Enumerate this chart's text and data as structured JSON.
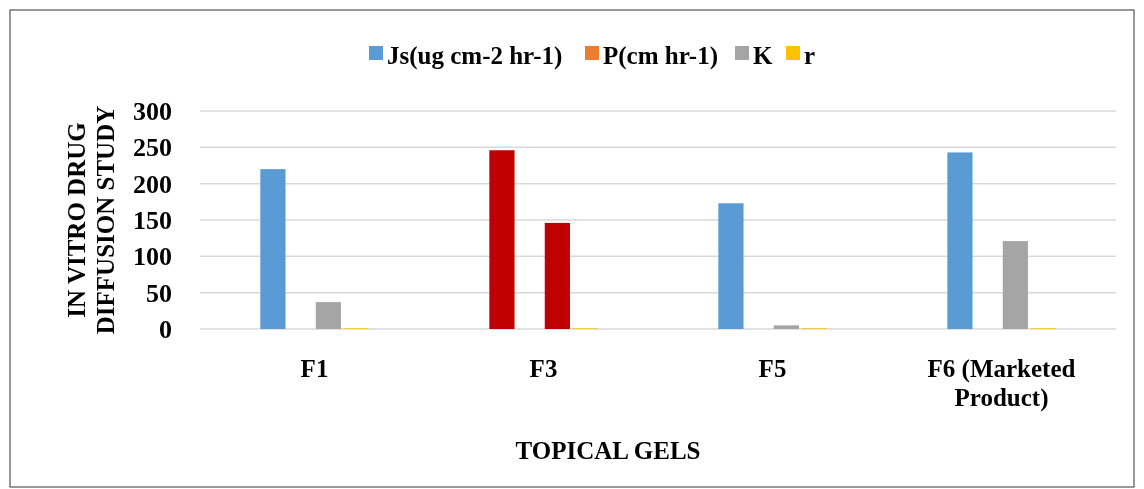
{
  "chart_data": {
    "type": "bar",
    "xlabel": "TOPICAL GELS",
    "ylabel": "IN VITRO DRUG DIFFUSION STUDY",
    "categories": [
      "F1",
      "F3",
      "F5",
      "F6 (Marketed Product)"
    ],
    "series": [
      {
        "name": "Js(ug cm-2 hr-1)",
        "color": "#5b9bd5",
        "colors": [
          "#5b9bd5",
          "#c00000",
          "#5b9bd5",
          "#5b9bd5"
        ],
        "values": [
          220,
          246,
          173,
          243
        ]
      },
      {
        "name": "P(cm hr-1)",
        "color": "#ed7d31",
        "values": [
          0,
          0,
          0,
          0
        ]
      },
      {
        "name": "K",
        "color": "#a5a5a5",
        "colors": [
          "#a5a5a5",
          "#c00000",
          "#a5a5a5",
          "#a5a5a5"
        ],
        "values": [
          37,
          146,
          5,
          121
        ]
      },
      {
        "name": "r",
        "color": "#ffc000",
        "values": [
          1,
          1,
          1,
          1
        ]
      }
    ],
    "ylim": [
      0,
      300
    ],
    "yticks": [
      0,
      50,
      100,
      150,
      200,
      250,
      300
    ],
    "grid": "y",
    "legend": "top"
  }
}
